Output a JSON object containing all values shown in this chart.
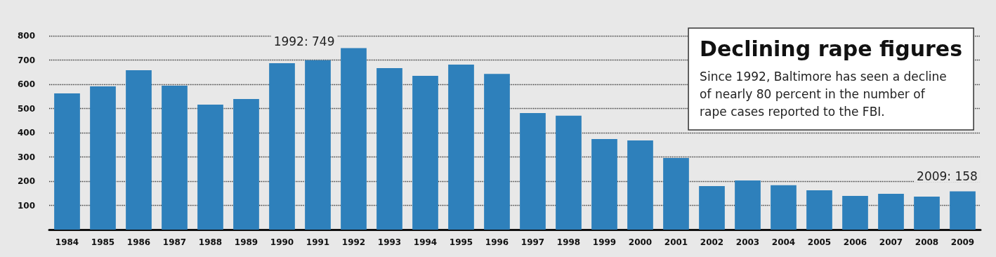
{
  "chart_data": {
    "type": "bar",
    "title": "Declining rape figures",
    "subtitle": "Since 1992, Baltimore has seen a decline\nof nearly 80 percent in the number of\nrape cases reported to the FBI.",
    "categories": [
      "1984",
      "1985",
      "1986",
      "1987",
      "1988",
      "1989",
      "1990",
      "1991",
      "1992",
      "1993",
      "1994",
      "1995",
      "1996",
      "1997",
      "1998",
      "1999",
      "2000",
      "2001",
      "2002",
      "2003",
      "2004",
      "2005",
      "2006",
      "2007",
      "2008",
      "2009"
    ],
    "values": [
      562,
      591,
      658,
      594,
      516,
      539,
      687,
      699,
      749,
      667,
      635,
      681,
      643,
      481,
      470,
      374,
      368,
      296,
      180,
      203,
      183,
      162,
      139,
      148,
      136,
      158
    ],
    "color": "#2e80bb",
    "ylim": [
      0,
      800
    ],
    "yticks": [
      100,
      200,
      300,
      400,
      500,
      600,
      700,
      800
    ],
    "grid": "y",
    "annotations": [
      {
        "text": "1992: 749",
        "x": "1992",
        "y": 749
      },
      {
        "text": "2009: 158",
        "x": "2009",
        "y": 158
      }
    ]
  }
}
